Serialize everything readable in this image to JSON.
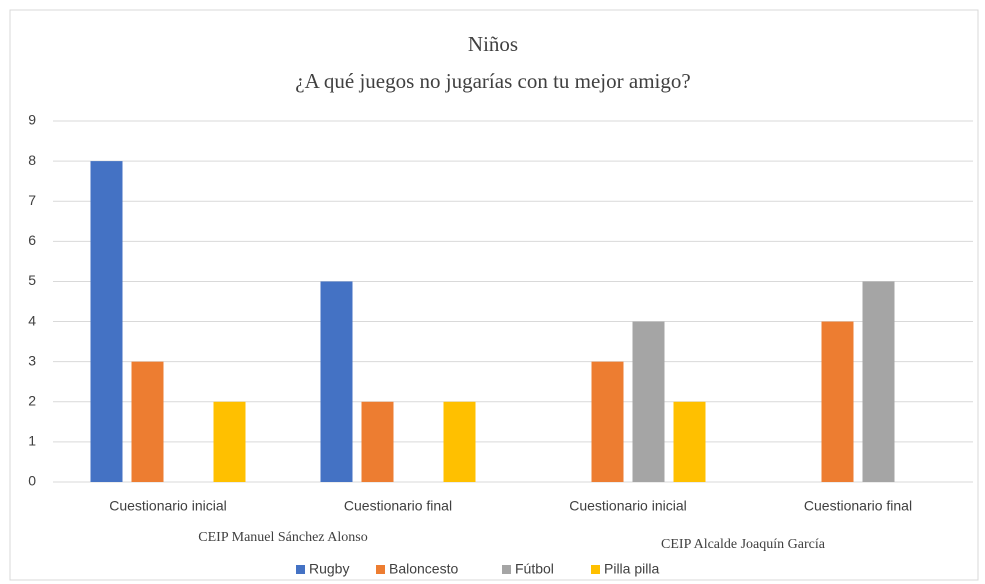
{
  "chart_data": {
    "type": "bar",
    "title": "Niños",
    "subtitle": "¿A qué juegos no jugarías con tu mejor amigo?",
    "categories": [
      "Cuestionario inicial",
      "Cuestionario final",
      "Cuestionario inicial",
      "Cuestionario final"
    ],
    "annotations": [
      "CEIP Manuel Sánchez Alonso",
      "CEIP Alcalde Joaquín García"
    ],
    "series": [
      {
        "name": "Rugby",
        "color": "#4472c4",
        "values": [
          8,
          5,
          0,
          0
        ]
      },
      {
        "name": "Baloncesto",
        "color": "#ed7d31",
        "values": [
          3,
          2,
          3,
          4
        ]
      },
      {
        "name": "Fútbol",
        "color": "#a5a5a5",
        "values": [
          0,
          0,
          4,
          5
        ]
      },
      {
        "name": "Pilla pilla",
        "color": "#ffc000",
        "values": [
          2,
          2,
          2,
          0
        ]
      }
    ],
    "ylim": [
      0,
      9
    ],
    "yticks": [
      0,
      1,
      2,
      3,
      4,
      5,
      6,
      7,
      8,
      9
    ],
    "grid": true,
    "legend": "bottom"
  }
}
